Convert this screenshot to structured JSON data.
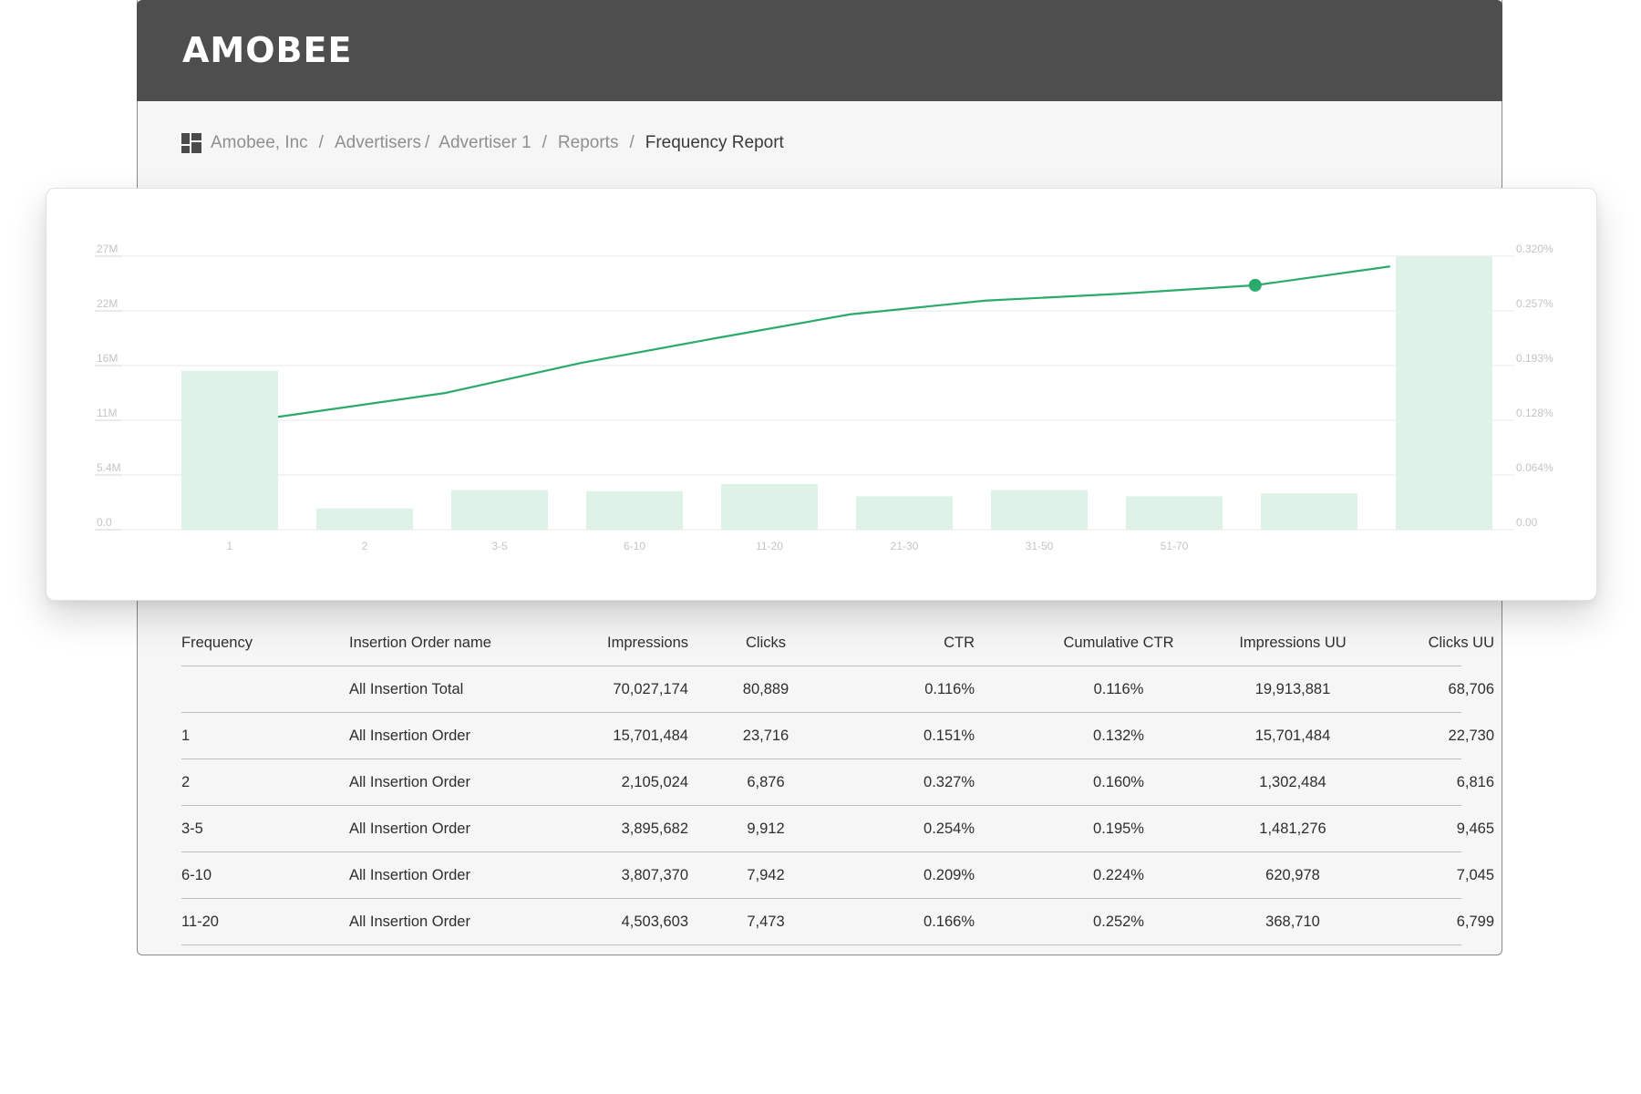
{
  "header": {
    "logo": "AMOBEE"
  },
  "breadcrumb": {
    "items": [
      "Amobee, Inc",
      "Advertisers",
      "Advertiser 1",
      "Reports"
    ],
    "current": "Frequency Report",
    "separator": "/"
  },
  "chart_data": {
    "type": "bar",
    "categories": [
      "1",
      "2",
      "3-5",
      "6-10",
      "11-20",
      "21-30",
      "31-50",
      "51-70",
      "",
      ""
    ],
    "series": [
      {
        "type": "bar",
        "axis": "left",
        "values": [
          15.7,
          2.1,
          3.9,
          3.8,
          4.5,
          3.3,
          3.9,
          3.3,
          3.6,
          27.0
        ]
      },
      {
        "type": "line",
        "axis": "right",
        "values": [
          null,
          0.132,
          0.16,
          0.195,
          0.224,
          0.252,
          0.268,
          0.276,
          0.286,
          0.308
        ],
        "highlight_index": 8
      }
    ],
    "yleft_ticks": [
      "0.0",
      "5.4M",
      "11M",
      "16M",
      "22M",
      "27M"
    ],
    "yright_ticks": [
      "0.00",
      "0.064%",
      "0.128%",
      "0.193%",
      "0.257%",
      "0.320%"
    ],
    "yleft_lim": [
      0,
      27
    ],
    "yright_lim": [
      0,
      0.32
    ],
    "grid": true,
    "colors": {
      "bar": "#dff2e8",
      "line": "#2baa6c",
      "grid": "#e8e8e8",
      "tick": "#c4c4c4"
    }
  },
  "table": {
    "columns": [
      "Frequency",
      "Insertion Order name",
      "Impressions",
      "Clicks",
      "CTR",
      "Cumulative CTR",
      "Impressions UU",
      "Clicks UU"
    ],
    "rows": [
      [
        "",
        "All Insertion Total",
        "70,027,174",
        "80,889",
        "0.116%",
        "0.116%",
        "19,913,881",
        "68,706"
      ],
      [
        "1",
        "All Insertion Order",
        "15,701,484",
        "23,716",
        "0.151%",
        "0.132%",
        "15,701,484",
        "22,730"
      ],
      [
        "2",
        "All Insertion Order",
        "2,105,024",
        "6,876",
        "0.327%",
        "0.160%",
        "1,302,484",
        "6,816"
      ],
      [
        "3-5",
        "All Insertion Order",
        "3,895,682",
        "9,912",
        "0.254%",
        "0.195%",
        "1,481,276",
        "9,465"
      ],
      [
        "6-10",
        "All Insertion Order",
        "3,807,370",
        "7,942",
        "0.209%",
        "0.224%",
        "620,978",
        "7,045"
      ],
      [
        "11-20",
        "All Insertion Order",
        "4,503,603",
        "7,473",
        "0.166%",
        "0.252%",
        "368,710",
        "6,799"
      ]
    ]
  }
}
